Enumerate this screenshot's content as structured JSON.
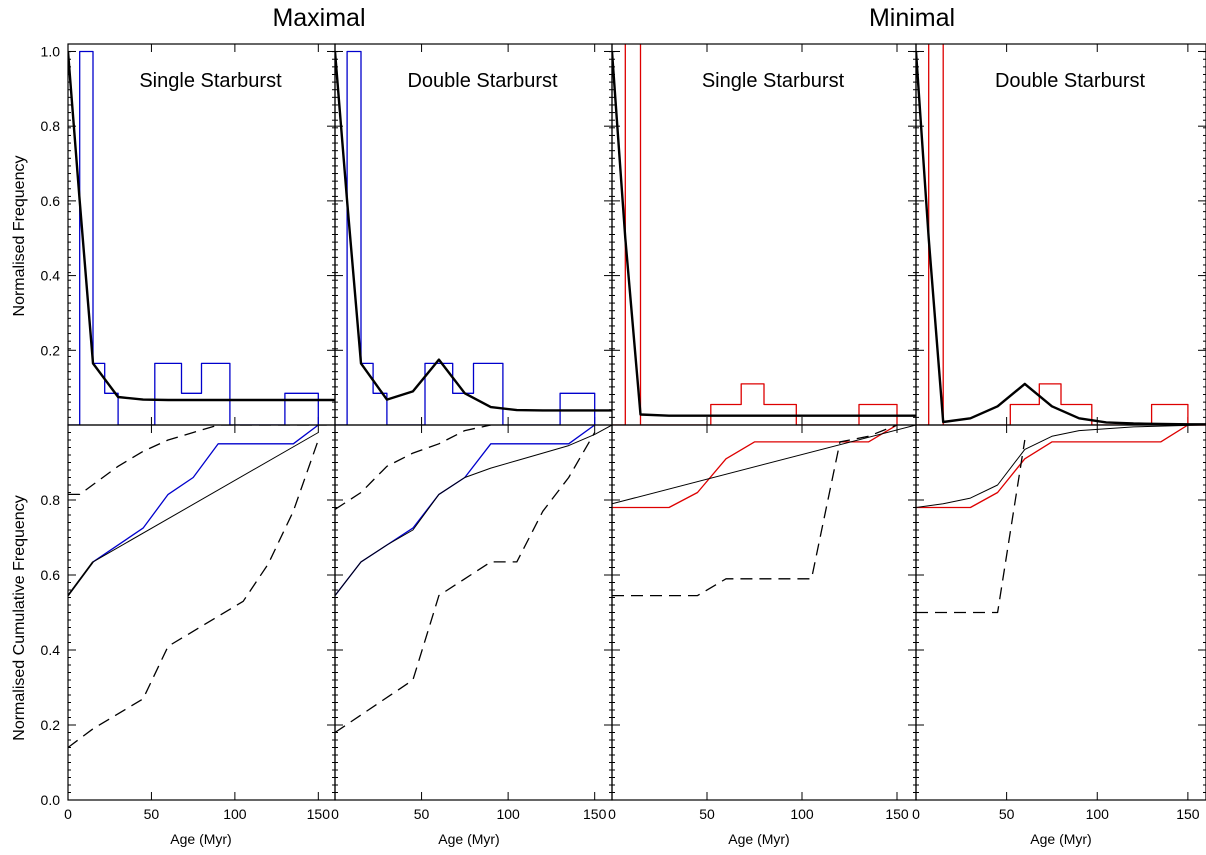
{
  "figure": {
    "titles": [
      "Maximal",
      "Minimal"
    ],
    "ylabel_top": "Normalised Frequency",
    "ylabel_bottom": "Normalised Cumulative Frequency",
    "xlabel": "Age (Myr)"
  },
  "chart_data": [
    {
      "type": "line",
      "title": "Single Starburst",
      "group": "Maximal",
      "row": "frequency",
      "xlim": [
        0,
        160
      ],
      "ylim": [
        0,
        1.02
      ],
      "xticks": [
        0,
        50,
        100,
        150
      ],
      "yticks": [
        0.2,
        0.4,
        0.6,
        0.8,
        1.0
      ],
      "series": [
        {
          "color": "#0000cc",
          "style": "step",
          "x": [
            0,
            7,
            7,
            15,
            15,
            22,
            22,
            30,
            30,
            52,
            52,
            68,
            68,
            80,
            80,
            97,
            97,
            130,
            130,
            150,
            150
          ],
          "y": [
            0,
            0,
            1.0,
            1.0,
            0.165,
            0.165,
            0.085,
            0.085,
            0,
            0,
            0.165,
            0.165,
            0.085,
            0.085,
            0.165,
            0.165,
            0,
            0,
            0.085,
            0.085,
            0
          ]
        },
        {
          "color": "#000000",
          "style": "solid",
          "width": 2.4,
          "x": [
            0,
            7,
            15,
            30,
            45,
            60,
            75,
            90,
            105,
            120,
            135,
            150,
            160
          ],
          "y": [
            1.0,
            0.6,
            0.165,
            0.075,
            0.068,
            0.067,
            0.067,
            0.067,
            0.067,
            0.067,
            0.067,
            0.067,
            0.067
          ]
        }
      ]
    },
    {
      "type": "line",
      "title": "Double Starburst",
      "group": "Maximal",
      "row": "frequency",
      "xlim": [
        0,
        160
      ],
      "ylim": [
        0,
        1.02
      ],
      "xticks": [
        0,
        50,
        100,
        150
      ],
      "yticks": [
        0.2,
        0.4,
        0.6,
        0.8,
        1.0
      ],
      "series": [
        {
          "color": "#0000cc",
          "style": "step",
          "x": [
            0,
            7,
            7,
            15,
            15,
            22,
            22,
            30,
            30,
            52,
            52,
            68,
            68,
            80,
            80,
            97,
            97,
            130,
            130,
            150,
            150
          ],
          "y": [
            0,
            0,
            1.0,
            1.0,
            0.165,
            0.165,
            0.085,
            0.085,
            0,
            0,
            0.165,
            0.165,
            0.085,
            0.085,
            0.165,
            0.165,
            0,
            0,
            0.085,
            0.085,
            0
          ]
        },
        {
          "color": "#000000",
          "style": "solid",
          "width": 2.4,
          "x": [
            0,
            7,
            15,
            30,
            45,
            60,
            75,
            90,
            105,
            120,
            135,
            150,
            160
          ],
          "y": [
            1.0,
            0.6,
            0.165,
            0.068,
            0.09,
            0.175,
            0.085,
            0.048,
            0.04,
            0.039,
            0.039,
            0.039,
            0.039
          ]
        }
      ]
    },
    {
      "type": "line",
      "title": "Single Starburst",
      "group": "Minimal",
      "row": "frequency",
      "xlim": [
        0,
        160
      ],
      "ylim": [
        0,
        1.02
      ],
      "xticks": [
        0,
        50,
        100,
        150
      ],
      "yticks": [
        0.2,
        0.4,
        0.6,
        0.8,
        1.0
      ],
      "series": [
        {
          "color": "#dd0000",
          "style": "step",
          "x": [
            0,
            7,
            7,
            15,
            15,
            22,
            22,
            30,
            30,
            52,
            52,
            68,
            68,
            80,
            80,
            97,
            97,
            130,
            130,
            150,
            150
          ],
          "y": [
            0,
            0,
            1.2,
            1.2,
            0,
            0,
            0,
            0,
            0,
            0,
            0.055,
            0.055,
            0.11,
            0.11,
            0.055,
            0.055,
            0,
            0,
            0.055,
            0.055,
            0
          ]
        },
        {
          "color": "#000000",
          "style": "solid",
          "width": 2.4,
          "x": [
            0,
            7,
            15,
            30,
            45,
            60,
            75,
            90,
            105,
            120,
            135,
            150,
            160
          ],
          "y": [
            1.0,
            0.5,
            0.028,
            0.025,
            0.025,
            0.025,
            0.025,
            0.025,
            0.025,
            0.025,
            0.025,
            0.025,
            0.025
          ]
        }
      ]
    },
    {
      "type": "line",
      "title": "Double Starburst",
      "group": "Minimal",
      "row": "frequency",
      "xlim": [
        0,
        160
      ],
      "ylim": [
        0,
        1.02
      ],
      "xticks": [
        0,
        50,
        100,
        150
      ],
      "yticks": [
        0.2,
        0.4,
        0.6,
        0.8,
        1.0
      ],
      "series": [
        {
          "color": "#dd0000",
          "style": "step",
          "x": [
            0,
            7,
            7,
            15,
            15,
            22,
            22,
            30,
            30,
            52,
            52,
            68,
            68,
            80,
            80,
            97,
            97,
            130,
            130,
            150,
            150
          ],
          "y": [
            0,
            0,
            1.2,
            1.2,
            0,
            0,
            0,
            0,
            0,
            0,
            0.055,
            0.055,
            0.11,
            0.11,
            0.055,
            0.055,
            0,
            0,
            0.055,
            0.055,
            0
          ]
        },
        {
          "color": "#000000",
          "style": "solid",
          "width": 2.4,
          "x": [
            0,
            7,
            15,
            30,
            45,
            60,
            75,
            90,
            105,
            120,
            135,
            150,
            160
          ],
          "y": [
            1.0,
            0.5,
            0.008,
            0.018,
            0.05,
            0.11,
            0.05,
            0.018,
            0.007,
            0.004,
            0.003,
            0.002,
            0.002
          ]
        }
      ]
    },
    {
      "type": "line",
      "group": "Maximal",
      "row": "cumulative",
      "xlim": [
        0,
        160
      ],
      "ylim": [
        0,
        1.0
      ],
      "xticks": [
        0,
        50,
        100,
        150
      ],
      "yticks": [
        0.0,
        0.2,
        0.4,
        0.6,
        0.8
      ],
      "series": [
        {
          "color": "#0000cc",
          "style": "solid",
          "x": [
            0,
            15,
            45,
            60,
            75,
            90,
            135,
            150
          ],
          "y": [
            0.545,
            0.635,
            0.725,
            0.815,
            0.86,
            0.95,
            0.95,
            1.0
          ]
        },
        {
          "color": "#000000",
          "style": "solid",
          "width": 1.8,
          "x": [
            0,
            15
          ],
          "y": [
            0.545,
            0.635
          ]
        },
        {
          "color": "#000000",
          "style": "solid",
          "width": 1,
          "x": [
            15,
            150
          ],
          "y": [
            0.635,
            0.98
          ]
        },
        {
          "color": "#000000",
          "style": "dashed",
          "x": [
            0,
            7,
            30,
            45,
            60,
            75,
            90,
            105,
            120,
            135,
            150,
            155
          ],
          "y": [
            0.815,
            0.815,
            0.89,
            0.93,
            0.96,
            0.98,
            1.0,
            1.0,
            1.0,
            1.0,
            1.0,
            1.0
          ]
        },
        {
          "color": "#000000",
          "style": "dashed",
          "x": [
            0,
            15,
            30,
            45,
            60,
            75,
            90,
            105,
            120,
            135,
            150
          ],
          "y": [
            0.14,
            0.19,
            0.23,
            0.27,
            0.41,
            0.45,
            0.49,
            0.53,
            0.63,
            0.77,
            0.96
          ]
        }
      ]
    },
    {
      "type": "line",
      "group": "Maximal",
      "row": "cumulative",
      "xlim": [
        0,
        160
      ],
      "ylim": [
        0,
        1.0
      ],
      "xticks": [
        0,
        50,
        100,
        150
      ],
      "yticks": [
        0.0,
        0.2,
        0.4,
        0.6,
        0.8
      ],
      "series": [
        {
          "color": "#0000cc",
          "style": "solid",
          "x": [
            0,
            15,
            45,
            60,
            75,
            90,
            135,
            150
          ],
          "y": [
            0.545,
            0.635,
            0.725,
            0.815,
            0.86,
            0.95,
            0.95,
            1.0
          ]
        },
        {
          "color": "#000000",
          "style": "solid",
          "width": 1,
          "x": [
            0,
            15,
            30,
            45,
            60,
            75,
            90,
            105,
            120,
            135,
            150,
            160
          ],
          "y": [
            0.545,
            0.635,
            0.68,
            0.72,
            0.815,
            0.86,
            0.885,
            0.905,
            0.925,
            0.945,
            0.975,
            1.0
          ]
        },
        {
          "color": "#000000",
          "style": "dashed",
          "x": [
            0,
            15,
            30,
            45,
            60,
            75,
            90
          ],
          "y": [
            0.775,
            0.82,
            0.89,
            0.925,
            0.95,
            0.985,
            1.0
          ]
        },
        {
          "color": "#000000",
          "style": "dashed",
          "x": [
            0,
            45,
            60,
            75,
            90,
            105,
            120,
            135,
            150
          ],
          "y": [
            0.18,
            0.32,
            0.545,
            0.59,
            0.635,
            0.635,
            0.77,
            0.86,
            0.98
          ]
        }
      ]
    },
    {
      "type": "line",
      "group": "Minimal",
      "row": "cumulative",
      "xlim": [
        0,
        160
      ],
      "ylim": [
        0,
        1.0
      ],
      "xticks": [
        0,
        50,
        100,
        150
      ],
      "yticks": [
        0.0,
        0.2,
        0.4,
        0.6,
        0.8
      ],
      "series": [
        {
          "color": "#dd0000",
          "style": "solid",
          "x": [
            0,
            30,
            45,
            60,
            75,
            135,
            150
          ],
          "y": [
            0.78,
            0.78,
            0.82,
            0.91,
            0.955,
            0.955,
            1.0
          ]
        },
        {
          "color": "#000000",
          "style": "solid",
          "width": 1,
          "x": [
            0,
            160
          ],
          "y": [
            0.79,
            1.0
          ]
        },
        {
          "color": "#000000",
          "style": "dashed",
          "x": [
            0,
            45,
            60,
            105,
            120,
            135,
            150
          ],
          "y": [
            0.545,
            0.545,
            0.59,
            0.59,
            0.955,
            0.97,
            1.0
          ]
        }
      ]
    },
    {
      "type": "line",
      "group": "Minimal",
      "row": "cumulative",
      "xlim": [
        0,
        160
      ],
      "ylim": [
        0,
        1.0
      ],
      "xticks": [
        0,
        50,
        100,
        150
      ],
      "yticks": [
        0.0,
        0.2,
        0.4,
        0.6,
        0.8
      ],
      "series": [
        {
          "color": "#dd0000",
          "style": "solid",
          "x": [
            0,
            30,
            45,
            60,
            75,
            135,
            150,
            160
          ],
          "y": [
            0.78,
            0.78,
            0.82,
            0.91,
            0.955,
            0.955,
            1.0,
            1.0
          ]
        },
        {
          "color": "#000000",
          "style": "solid",
          "width": 1,
          "x": [
            0,
            15,
            30,
            45,
            60,
            75,
            90,
            105,
            120,
            135,
            150,
            160
          ],
          "y": [
            0.78,
            0.79,
            0.805,
            0.84,
            0.935,
            0.97,
            0.985,
            0.99,
            0.995,
            0.997,
            0.999,
            1.0
          ]
        },
        {
          "color": "#000000",
          "style": "dashed",
          "x": [
            0,
            45,
            60
          ],
          "y": [
            0.5,
            0.5,
            0.96
          ]
        }
      ]
    }
  ]
}
